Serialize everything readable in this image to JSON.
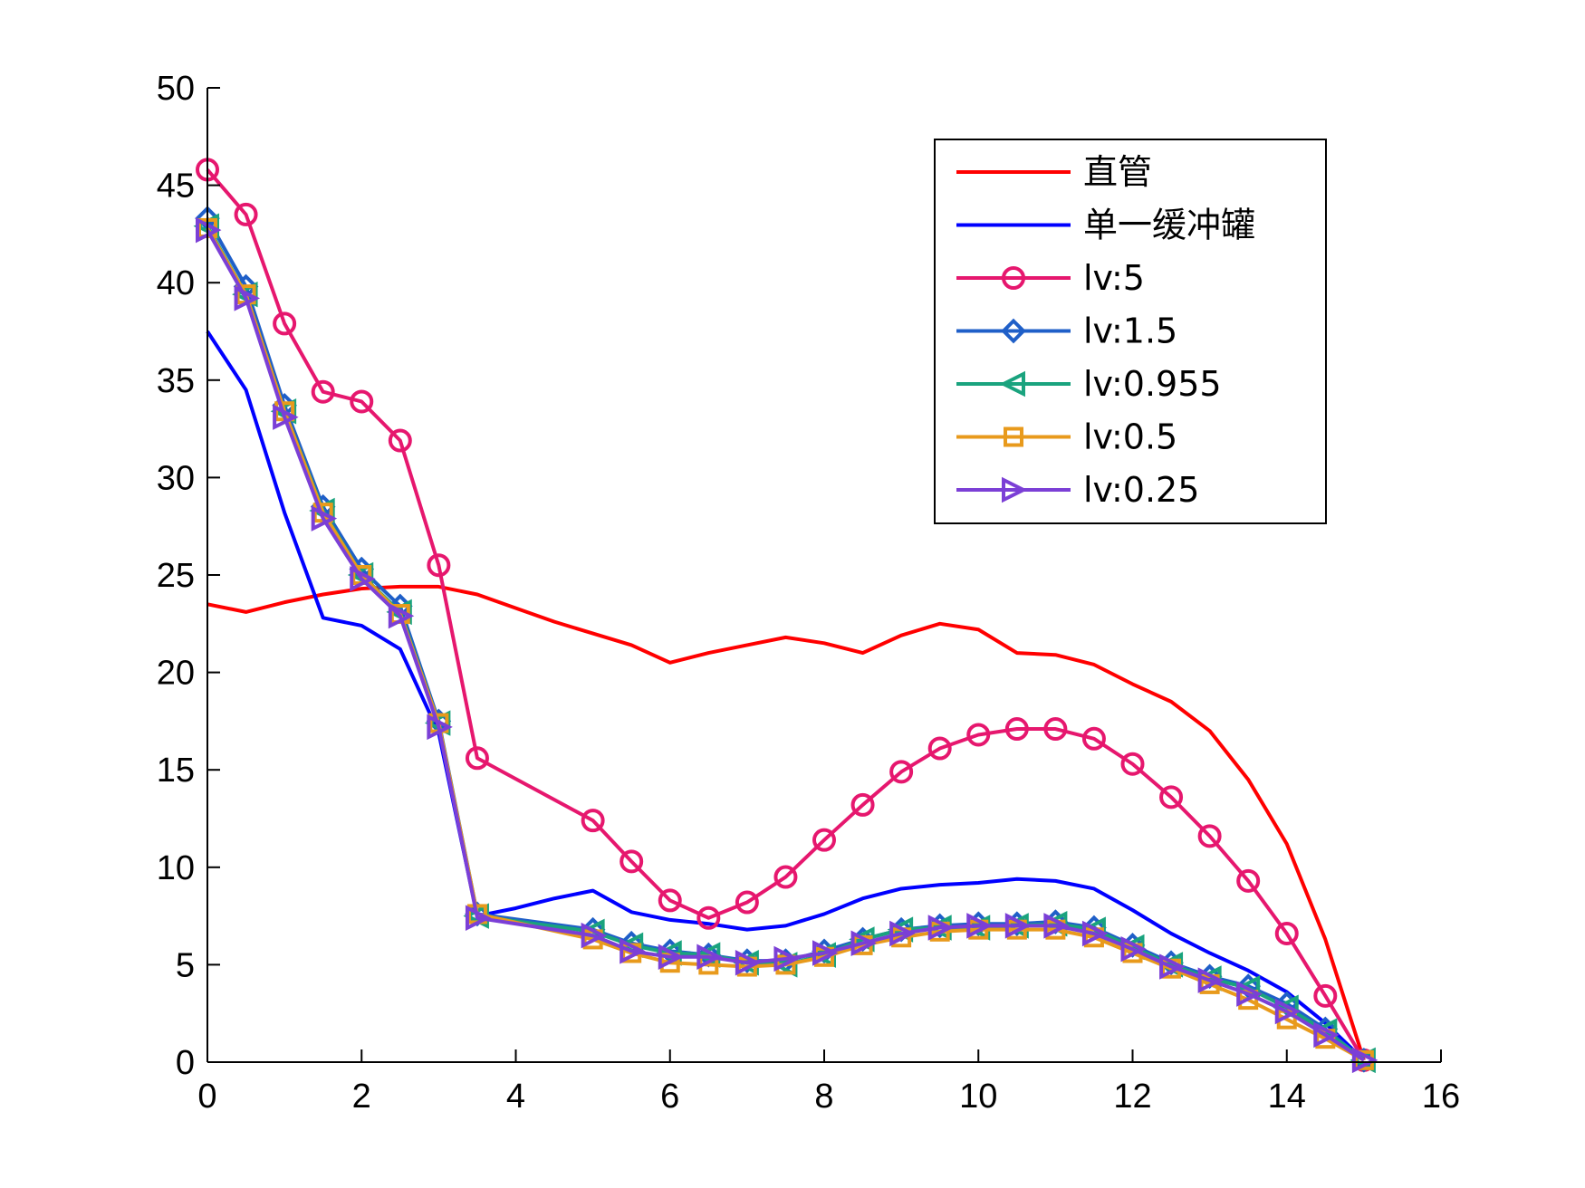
{
  "chart_data": {
    "type": "line",
    "title": "",
    "xlabel": "",
    "ylabel": "",
    "xlim": [
      0,
      16
    ],
    "ylim": [
      0,
      50
    ],
    "xticks": [
      0,
      2,
      4,
      6,
      8,
      10,
      12,
      14,
      16
    ],
    "yticks": [
      0,
      5,
      10,
      15,
      20,
      25,
      30,
      35,
      40,
      45,
      50
    ],
    "grid": false,
    "legend_position": "top-right",
    "series": [
      {
        "name": "直管",
        "color": "#ff0000",
        "marker": "none",
        "x": [
          0,
          0.5,
          1,
          1.5,
          2,
          2.5,
          3,
          3.5,
          4,
          4.5,
          5,
          5.5,
          6,
          6.5,
          7,
          7.5,
          8,
          8.5,
          9,
          9.5,
          10,
          10.5,
          11,
          11.5,
          12,
          12.5,
          13,
          13.5,
          14,
          14.5,
          15
        ],
        "y": [
          23.5,
          23.1,
          23.6,
          24.0,
          24.3,
          24.4,
          24.4,
          24.0,
          23.3,
          22.6,
          22.0,
          21.4,
          20.5,
          21.0,
          21.4,
          21.8,
          21.5,
          21.0,
          21.9,
          22.5,
          22.2,
          21.0,
          20.9,
          20.4,
          19.4,
          18.5,
          17.0,
          14.5,
          11.2,
          6.3,
          0.1
        ]
      },
      {
        "name": "单一缓冲罐",
        "color": "#0000ff",
        "marker": "none",
        "x": [
          0,
          0.5,
          1,
          1.5,
          2,
          2.5,
          3,
          3.5,
          4,
          4.5,
          5,
          5.5,
          6,
          6.5,
          7,
          7.5,
          8,
          8.5,
          9,
          9.5,
          10,
          10.5,
          11,
          11.5,
          12,
          12.5,
          13,
          13.5,
          14,
          14.5,
          15
        ],
        "y": [
          37.5,
          34.5,
          28.2,
          22.8,
          22.4,
          21.2,
          16.9,
          7.5,
          7.9,
          8.4,
          8.8,
          7.7,
          7.3,
          7.1,
          6.8,
          7.0,
          7.6,
          8.4,
          8.9,
          9.1,
          9.2,
          9.4,
          9.3,
          8.9,
          7.8,
          6.6,
          5.6,
          4.7,
          3.6,
          2.0,
          0.1
        ]
      },
      {
        "name": "lv:5",
        "color": "#e6176e",
        "marker": "circle",
        "x": [
          0,
          0.5,
          1,
          1.5,
          2,
          2.5,
          3,
          3.5,
          5,
          5.5,
          6,
          6.5,
          7,
          7.5,
          8,
          8.5,
          9,
          9.5,
          10,
          10.5,
          11,
          11.5,
          12,
          12.5,
          13,
          13.5,
          14,
          14.5,
          15
        ],
        "y": [
          45.8,
          43.5,
          37.9,
          34.4,
          33.9,
          31.9,
          25.5,
          15.6,
          12.4,
          10.3,
          8.3,
          7.4,
          8.2,
          9.5,
          11.4,
          13.2,
          14.9,
          16.1,
          16.8,
          17.1,
          17.1,
          16.6,
          15.3,
          13.6,
          11.6,
          9.3,
          6.6,
          3.4,
          0.1
        ]
      },
      {
        "name": "lv:1.5",
        "color": "#1f5fc8",
        "marker": "diamond",
        "x": [
          0,
          0.5,
          1,
          1.5,
          2,
          2.5,
          3,
          3.5,
          5,
          5.5,
          6,
          6.5,
          7,
          7.5,
          8,
          8.5,
          9,
          9.5,
          10,
          10.5,
          11,
          11.5,
          12,
          12.5,
          13,
          13.5,
          14,
          14.5,
          15
        ],
        "y": [
          43.3,
          39.8,
          33.7,
          28.5,
          25.3,
          23.4,
          17.5,
          7.6,
          6.8,
          6.1,
          5.7,
          5.5,
          5.2,
          5.2,
          5.7,
          6.3,
          6.8,
          7.0,
          7.1,
          7.1,
          7.2,
          6.9,
          6.0,
          5.1,
          4.4,
          3.9,
          3.0,
          1.7,
          0.1
        ]
      },
      {
        "name": "lv:0.955",
        "color": "#1aa37e",
        "marker": "triangle-left",
        "x": [
          0,
          0.5,
          1,
          1.5,
          2,
          2.5,
          3,
          3.5,
          5,
          5.5,
          6,
          6.5,
          7,
          7.5,
          8,
          8.5,
          9,
          9.5,
          10,
          10.5,
          11,
          11.5,
          12,
          12.5,
          13,
          13.5,
          14,
          14.5,
          15
        ],
        "y": [
          42.9,
          39.4,
          33.4,
          28.3,
          25.0,
          23.1,
          17.4,
          7.5,
          6.7,
          6.0,
          5.6,
          5.5,
          5.1,
          5.0,
          5.5,
          6.3,
          6.8,
          6.9,
          6.9,
          7.0,
          7.1,
          6.8,
          5.9,
          5.0,
          4.3,
          3.8,
          2.8,
          1.6,
          0.1
        ]
      },
      {
        "name": "lv:0.5",
        "color": "#e89a1c",
        "marker": "square",
        "x": [
          0,
          0.5,
          1,
          1.5,
          2,
          2.5,
          3,
          3.5,
          5,
          5.5,
          6,
          6.5,
          7,
          7.5,
          8,
          8.5,
          9,
          9.5,
          10,
          10.5,
          11,
          11.5,
          12,
          12.5,
          13,
          13.5,
          14,
          14.5,
          15
        ],
        "y": [
          42.8,
          39.4,
          33.4,
          28.2,
          25.0,
          23.0,
          17.4,
          7.6,
          6.3,
          5.6,
          5.1,
          5.0,
          4.9,
          5.0,
          5.4,
          6.0,
          6.4,
          6.7,
          6.8,
          6.8,
          6.8,
          6.4,
          5.6,
          4.8,
          4.0,
          3.2,
          2.2,
          1.2,
          0.1
        ]
      },
      {
        "name": "lv:0.25",
        "color": "#7b3fd6",
        "marker": "triangle-right",
        "x": [
          0,
          0.5,
          1,
          1.5,
          2,
          2.5,
          3,
          3.5,
          5,
          5.5,
          6,
          6.5,
          7,
          7.5,
          8,
          8.5,
          9,
          9.5,
          10,
          10.5,
          11,
          11.5,
          12,
          12.5,
          13,
          13.5,
          14,
          14.5,
          15
        ],
        "y": [
          42.7,
          39.2,
          33.1,
          27.9,
          24.8,
          22.9,
          17.2,
          7.4,
          6.5,
          5.7,
          5.4,
          5.4,
          5.1,
          5.3,
          5.6,
          6.1,
          6.6,
          6.9,
          7.0,
          7.0,
          7.0,
          6.6,
          5.8,
          4.9,
          4.2,
          3.5,
          2.6,
          1.4,
          0.1
        ]
      }
    ]
  }
}
